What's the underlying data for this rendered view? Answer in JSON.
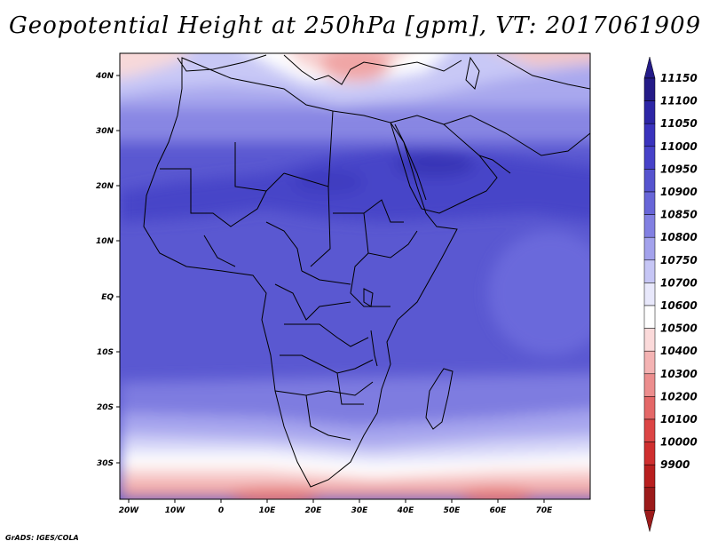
{
  "title": "Geopotential Height at 250hPa [gpm], VT: 2017061909",
  "credit": "GrADS: IGES/COLA",
  "map": {
    "lat_labels": [
      "40N",
      "30N",
      "20N",
      "10N",
      "EQ",
      "10S",
      "20S",
      "30S"
    ],
    "lon_labels": [
      "20W",
      "10W",
      "0",
      "10E",
      "20E",
      "30E",
      "40E",
      "50E",
      "60E",
      "70E"
    ]
  },
  "colorbar": {
    "labels": [
      "11150",
      "11100",
      "11050",
      "11000",
      "10950",
      "10900",
      "10850",
      "10800",
      "10750",
      "10700",
      "10600",
      "10500",
      "10400",
      "10300",
      "10200",
      "10100",
      "10000",
      "9900"
    ],
    "colors": [
      "#241b87",
      "#2d26a6",
      "#3a33bd",
      "#4742c9",
      "#5654cf",
      "#6866d8",
      "#8280e2",
      "#a3a2ec",
      "#c6c6f5",
      "#e8e8fb",
      "#ffffff",
      "#fbdada",
      "#f4b3b3",
      "#ec8e8e",
      "#e46868",
      "#dc4545",
      "#cf2f2f",
      "#b81f1f",
      "#9c1b1b"
    ],
    "top_color": "#241b87",
    "bottom_color": "#9c1b1b"
  }
}
